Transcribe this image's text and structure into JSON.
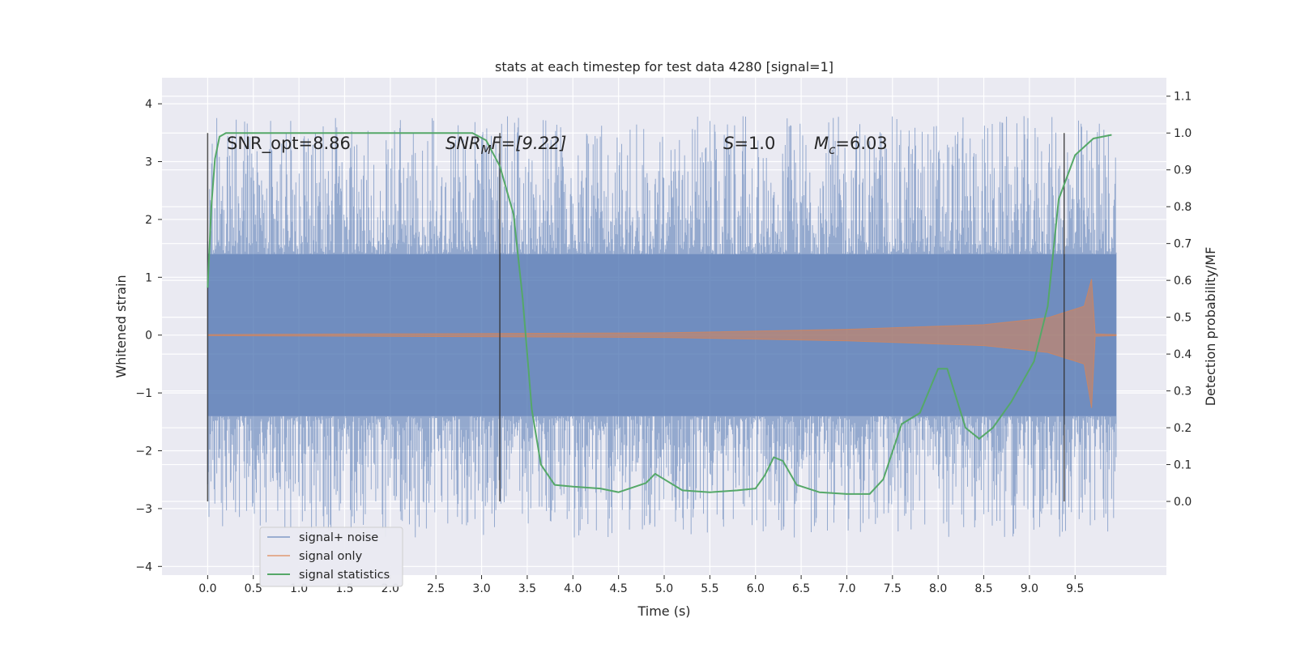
{
  "chart_data": {
    "type": "line",
    "title": "stats at each timestep for test data 4280 [signal=1]",
    "xlabel": "Time (s)",
    "ylabel_left": "Whitened strain",
    "ylabel_right": "Detection probability/MF",
    "xlim": [
      -0.5,
      10.5
    ],
    "ylim_left": [
      -4.15,
      4.45
    ],
    "ylim_right": [
      -0.2,
      1.15
    ],
    "x_ticks": [
      "0.0",
      "0.5",
      "1.0",
      "1.5",
      "2.0",
      "2.5",
      "3.0",
      "3.5",
      "4.0",
      "4.5",
      "5.0",
      "5.5",
      "6.0",
      "6.5",
      "7.0",
      "7.5",
      "8.0",
      "8.5",
      "9.0",
      "9.5"
    ],
    "y_ticks_left": [
      "4",
      "3",
      "2",
      "1",
      "0",
      "−1",
      "−2",
      "−3",
      "−4"
    ],
    "y_ticks_right": [
      "1.1",
      "1.0",
      "0.9",
      "0.8",
      "0.7",
      "0.6",
      "0.5",
      "0.4",
      "0.3",
      "0.2",
      "0.1",
      "0.0"
    ],
    "grid": true,
    "legend_position": "lower-left",
    "annotations": {
      "snr_opt": "SNR_opt=8.86",
      "snr_mf_main": "SNR",
      "snr_mf_sub": "M",
      "snr_mf_rest": "F=[9.22]",
      "s_main": "S",
      "s_rest": "=1.0",
      "mc_main": "M",
      "mc_sub": "c",
      "mc_rest": "=6.03"
    },
    "vertical_markers": [
      0.0,
      3.2,
      9.38
    ],
    "series": [
      {
        "name": "signal+ noise",
        "color": "#4c72b0",
        "x_range": [
          0.0,
          9.95
        ],
        "typical_band": [
          -1.4,
          1.4
        ],
        "envelope": [
          -3.7,
          4.05
        ]
      },
      {
        "name": "signal only",
        "color": "#dd8452",
        "envelope_points": [
          [
            0.0,
            0.01
          ],
          [
            5.0,
            0.04
          ],
          [
            7.0,
            0.1
          ],
          [
            8.5,
            0.18
          ],
          [
            9.2,
            0.3
          ],
          [
            9.6,
            0.5
          ],
          [
            9.68,
            0.97
          ],
          [
            9.72,
            0.02
          ],
          [
            9.95,
            0.01
          ]
        ]
      },
      {
        "name": "signal statistics",
        "color": "#55a868",
        "points": [
          [
            0.0,
            0.58
          ],
          [
            0.04,
            0.8
          ],
          [
            0.08,
            0.93
          ],
          [
            0.13,
            0.99
          ],
          [
            0.2,
            1.0
          ],
          [
            2.0,
            1.0
          ],
          [
            2.9,
            1.0
          ],
          [
            3.05,
            0.98
          ],
          [
            3.2,
            0.91
          ],
          [
            3.35,
            0.78
          ],
          [
            3.45,
            0.55
          ],
          [
            3.55,
            0.25
          ],
          [
            3.65,
            0.1
          ],
          [
            3.8,
            0.045
          ],
          [
            4.0,
            0.04
          ],
          [
            4.3,
            0.035
          ],
          [
            4.5,
            0.025
          ],
          [
            4.8,
            0.05
          ],
          [
            4.9,
            0.075
          ],
          [
            5.0,
            0.06
          ],
          [
            5.2,
            0.03
          ],
          [
            5.5,
            0.025
          ],
          [
            5.8,
            0.03
          ],
          [
            6.0,
            0.035
          ],
          [
            6.1,
            0.07
          ],
          [
            6.2,
            0.12
          ],
          [
            6.3,
            0.11
          ],
          [
            6.45,
            0.045
          ],
          [
            6.7,
            0.025
          ],
          [
            7.0,
            0.02
          ],
          [
            7.25,
            0.02
          ],
          [
            7.4,
            0.06
          ],
          [
            7.6,
            0.21
          ],
          [
            7.8,
            0.24
          ],
          [
            8.0,
            0.36
          ],
          [
            8.1,
            0.36
          ],
          [
            8.3,
            0.2
          ],
          [
            8.45,
            0.17
          ],
          [
            8.6,
            0.2
          ],
          [
            8.8,
            0.27
          ],
          [
            9.05,
            0.38
          ],
          [
            9.2,
            0.53
          ],
          [
            9.32,
            0.82
          ],
          [
            9.5,
            0.94
          ],
          [
            9.7,
            0.985
          ],
          [
            9.9,
            0.995
          ]
        ]
      }
    ]
  }
}
